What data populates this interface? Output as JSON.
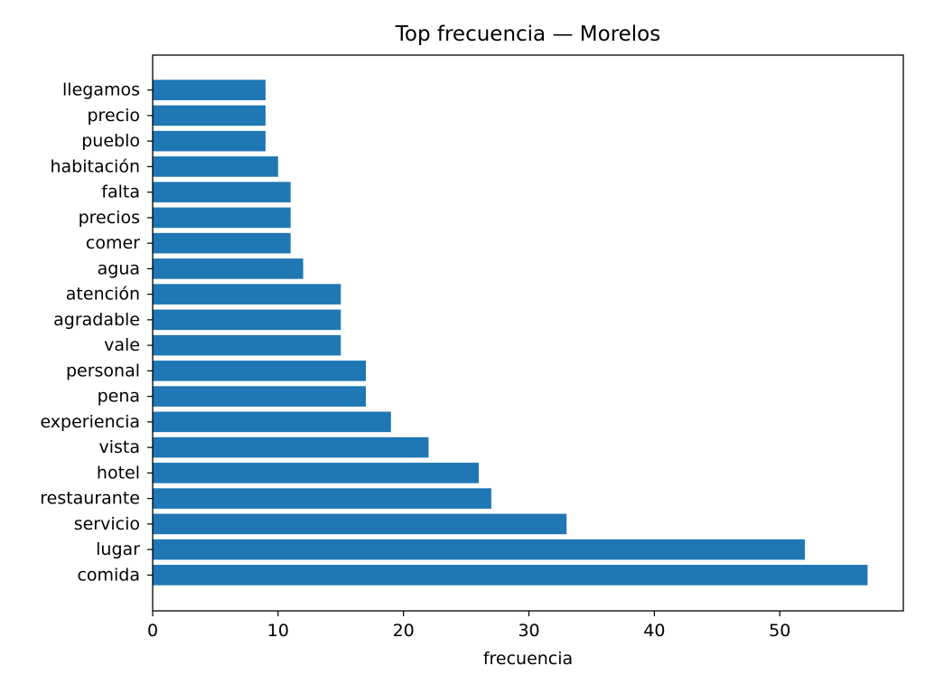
{
  "chart_data": {
    "type": "bar",
    "orientation": "horizontal",
    "title": "Top frecuencia — Morelos",
    "xlabel": "frecuencia",
    "ylabel": "",
    "xlim": [
      0,
      59.85
    ],
    "x_ticks": [
      0,
      10,
      20,
      30,
      40,
      50
    ],
    "bar_color": "#1f77b4",
    "grid": false,
    "categories": [
      "comida",
      "lugar",
      "servicio",
      "restaurante",
      "hotel",
      "vista",
      "experiencia",
      "pena",
      "personal",
      "vale",
      "agradable",
      "atención",
      "agua",
      "comer",
      "precios",
      "falta",
      "habitación",
      "pueblo",
      "precio",
      "llegamos"
    ],
    "values": [
      57,
      52,
      33,
      27,
      26,
      22,
      19,
      17,
      17,
      15,
      15,
      15,
      12,
      11,
      11,
      11,
      10,
      9,
      9,
      9
    ]
  }
}
